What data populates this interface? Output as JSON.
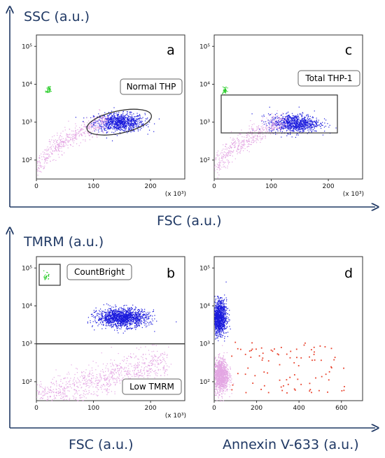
{
  "figure": {
    "top_y_axis_label": "SSC (a.u.)",
    "top_x_axis_label": "FSC (a.u.)",
    "bottom_y_axis_label": "TMRM (a.u.)",
    "bottom_left_x_axis_label": "FSC (a.u.)",
    "bottom_right_x_axis_label": "Annexin V-633 (a.u.)"
  },
  "colors": {
    "axis_arrow": "#1f3864",
    "label_text": "#1f3864",
    "population_blue": "#1a1adc",
    "debris_pink": "#e3a6e3",
    "beads_green": "#22cc22",
    "annexin_red": "#e8402a"
  },
  "chart_data": [
    {
      "type": "scatter",
      "panel": "a",
      "letter": "a",
      "gate": {
        "shape": "ellipse",
        "label": "Normal THP"
      },
      "x_scale_label": "(x 10³)",
      "x_ticks": [
        "0",
        "100",
        "200"
      ],
      "y_ticks": [
        "10²",
        "10³",
        "10⁴",
        "10⁵"
      ],
      "xlim": [
        0,
        260
      ],
      "ylim_log10": [
        1.5,
        5.3
      ],
      "populations": [
        {
          "color": "blue",
          "center": [
            145,
            1000
          ],
          "n": 900
        },
        {
          "color": "pink",
          "region": "debris",
          "n": 500
        },
        {
          "color": "green",
          "center": [
            20,
            7000
          ],
          "n": 40
        }
      ]
    },
    {
      "type": "scatter",
      "panel": "c",
      "letter": "c",
      "gate": {
        "shape": "rectangle",
        "label": "Total THP-1"
      },
      "x_scale_label": "(x 10³)",
      "x_ticks": [
        "0",
        "100",
        "200"
      ],
      "y_ticks": [
        "10²",
        "10³",
        "10⁴",
        "10⁵"
      ],
      "xlim": [
        0,
        260
      ],
      "ylim_log10": [
        1.5,
        5.3
      ],
      "populations": [
        {
          "color": "blue",
          "center": [
            140,
            950
          ],
          "n": 900
        },
        {
          "color": "pink",
          "region": "debris",
          "n": 500
        },
        {
          "color": "green",
          "center": [
            18,
            7000
          ],
          "n": 40
        }
      ]
    },
    {
      "type": "scatter",
      "panel": "b",
      "letter": "b",
      "gates": [
        {
          "shape": "rectangle",
          "label": "CountBright"
        },
        {
          "shape": "threshold",
          "label": "Low TMRM"
        }
      ],
      "x_scale_label": "(x 10³)",
      "x_ticks": [
        "0",
        "100",
        "200"
      ],
      "y_ticks": [
        "10²",
        "10³",
        "10⁴",
        "10⁵"
      ],
      "xlim": [
        0,
        260
      ],
      "ylim_log10": [
        1.5,
        5.3
      ],
      "threshold_y": 1000,
      "populations": [
        {
          "color": "blue",
          "center": [
            150,
            5000
          ],
          "n": 1400
        },
        {
          "color": "pink",
          "region": "low",
          "n": 900
        },
        {
          "color": "green",
          "center": [
            17,
            60000
          ],
          "n": 30
        }
      ]
    },
    {
      "type": "scatter",
      "panel": "d",
      "letter": "d",
      "x_ticks": [
        "0",
        "200",
        "400",
        "600"
      ],
      "y_ticks": [
        "10²",
        "10³",
        "10⁴",
        "10⁵"
      ],
      "xlim": [
        0,
        700
      ],
      "ylim_log10": [
        1.5,
        5.3
      ],
      "populations": [
        {
          "color": "blue",
          "center": [
            20,
            5000
          ],
          "n": 1200
        },
        {
          "color": "pink",
          "center": [
            30,
            150
          ],
          "n": 1200
        },
        {
          "color": "red",
          "region": "annexin",
          "n": 90
        }
      ]
    }
  ]
}
